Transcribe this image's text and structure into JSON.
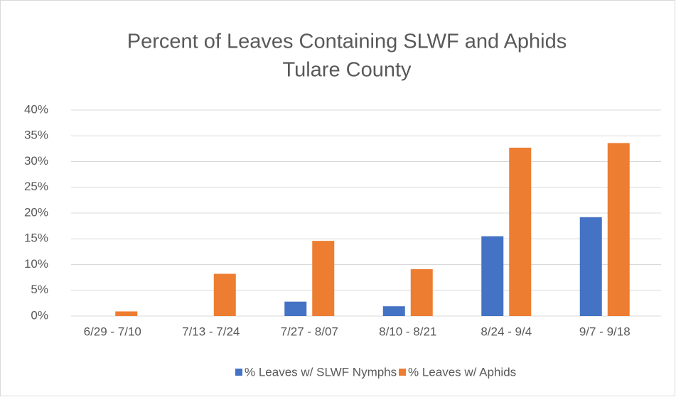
{
  "chart_data": {
    "type": "bar",
    "title": "Percent of Leaves Containing SLWF and Aphids",
    "subtitle": "Tulare County",
    "categories": [
      "6/29 - 7/10",
      "7/13 - 7/24",
      "7/27 - 8/07",
      "8/10 - 8/21",
      "8/24 - 9/4",
      "9/7 - 9/18"
    ],
    "series": [
      {
        "name": "% Leaves w/ SLWF Nymphs",
        "color": "#4472c4",
        "values": [
          0,
          0,
          2.8,
          1.9,
          15.5,
          19.2
        ]
      },
      {
        "name": "% Leaves w/ Aphids",
        "color": "#ed7d31",
        "values": [
          0.9,
          8.2,
          14.6,
          9.1,
          32.7,
          33.6
        ]
      }
    ],
    "ylim": [
      0,
      40
    ],
    "yticks": [
      {
        "value": 0,
        "label": "0%"
      },
      {
        "value": 5,
        "label": "5%"
      },
      {
        "value": 10,
        "label": "10%"
      },
      {
        "value": 15,
        "label": "15%"
      },
      {
        "value": 20,
        "label": "20%"
      },
      {
        "value": 25,
        "label": "25%"
      },
      {
        "value": 30,
        "label": "30%"
      },
      {
        "value": 35,
        "label": "35%"
      },
      {
        "value": 40,
        "label": "40%"
      }
    ],
    "grid": true,
    "legend": "bottom"
  }
}
